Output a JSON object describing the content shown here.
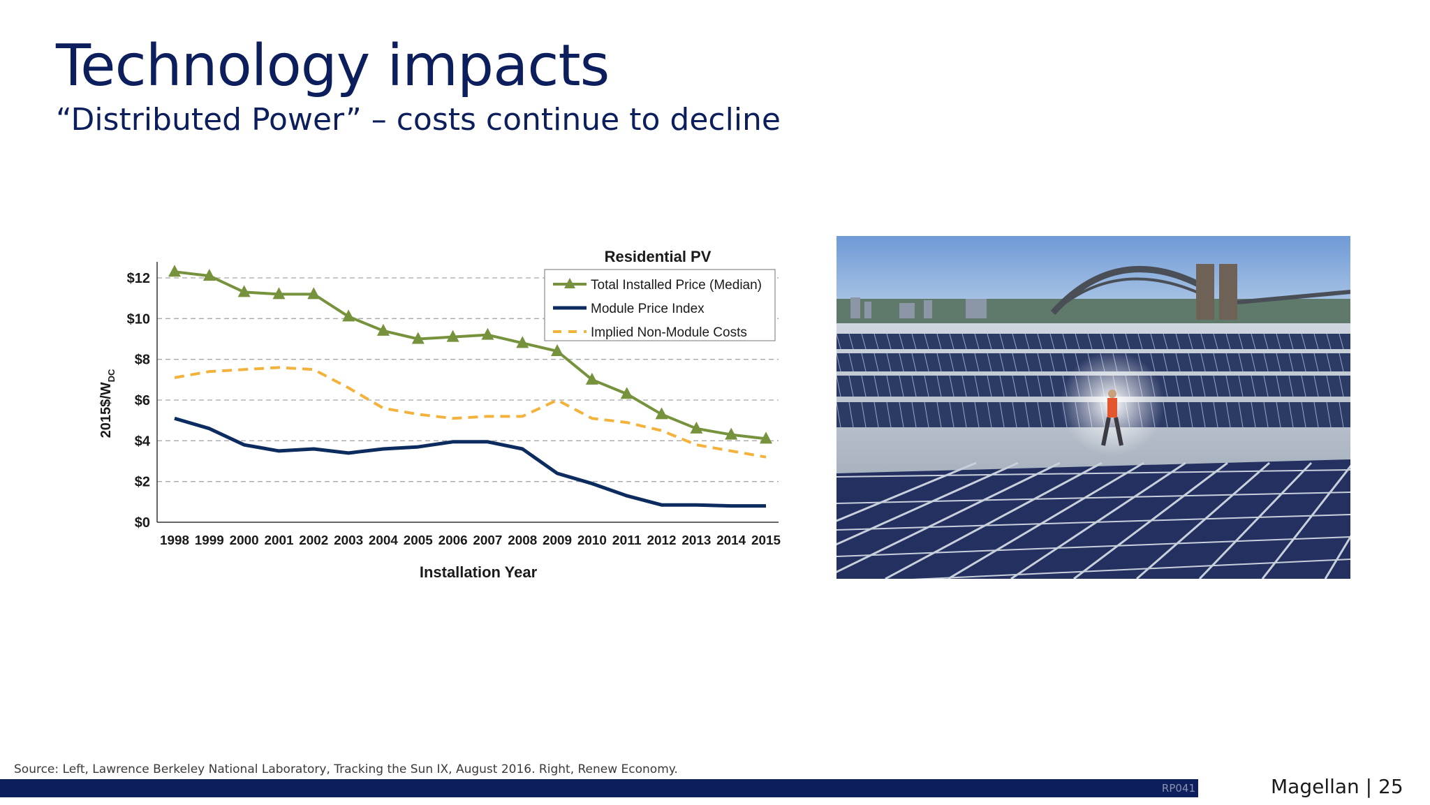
{
  "slide": {
    "title": "Technology impacts",
    "subtitle": "“Distributed Power” – costs continue to decline",
    "source": "Source: Left, Lawrence Berkeley National Laboratory, Tracking the Sun IX, August 2016. Right, Renew Economy.",
    "footer_code": "RP041",
    "footer_brand": "Magellan | 25"
  },
  "chart_data": {
    "type": "line",
    "title": "Residential PV",
    "xlabel": "Installation Year",
    "ylabel": "2015$/W",
    "ylabel_sub": "DC",
    "ylim": [
      0,
      12
    ],
    "yticks": [
      "$0",
      "$2",
      "$4",
      "$6",
      "$8",
      "$10",
      "$12"
    ],
    "ytick_values": [
      0,
      2,
      4,
      6,
      8,
      10,
      12
    ],
    "grid": "horizontal-dashed",
    "legend_position": "top-right",
    "x": [
      "1998",
      "1999",
      "2000",
      "2001",
      "2002",
      "2003",
      "2004",
      "2005",
      "2006",
      "2007",
      "2008",
      "2009",
      "2010",
      "2011",
      "2012",
      "2013",
      "2014",
      "2015"
    ],
    "series": [
      {
        "name": "Total Installed Price (Median)",
        "color": "#76923c",
        "style": "solid-triangle-markers",
        "values": [
          12.3,
          12.1,
          11.3,
          11.2,
          11.2,
          10.1,
          9.4,
          9.0,
          9.1,
          9.2,
          8.8,
          8.4,
          7.0,
          6.3,
          5.3,
          4.6,
          4.3,
          4.1
        ]
      },
      {
        "name": "Module Price Index",
        "color": "#0c2b5e",
        "style": "solid",
        "values": [
          5.1,
          4.6,
          3.8,
          3.5,
          3.6,
          3.4,
          3.6,
          3.7,
          3.95,
          3.95,
          3.6,
          2.4,
          1.9,
          1.3,
          0.85,
          0.85,
          0.8,
          0.8
        ]
      },
      {
        "name": "Implied Non-Module Costs",
        "color": "#f3b23c",
        "style": "dashed",
        "values": [
          7.1,
          7.4,
          7.5,
          7.6,
          7.5,
          6.6,
          5.6,
          5.3,
          5.1,
          5.2,
          5.2,
          6.0,
          5.1,
          4.9,
          4.5,
          3.8,
          3.5,
          3.2
        ]
      }
    ]
  }
}
